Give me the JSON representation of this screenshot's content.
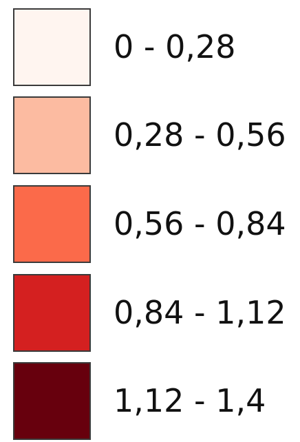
{
  "legend": {
    "items": [
      {
        "label": "0 - 0,28",
        "color": "#fff5f0"
      },
      {
        "label": "0,28 - 0,56",
        "color": "#fcbba1"
      },
      {
        "label": "0,56 - 0,84",
        "color": "#fb6a4a"
      },
      {
        "label": "0,84 - 1,12",
        "color": "#d42020"
      },
      {
        "label": "1,12 - 1,4",
        "color": "#67000d"
      }
    ]
  }
}
